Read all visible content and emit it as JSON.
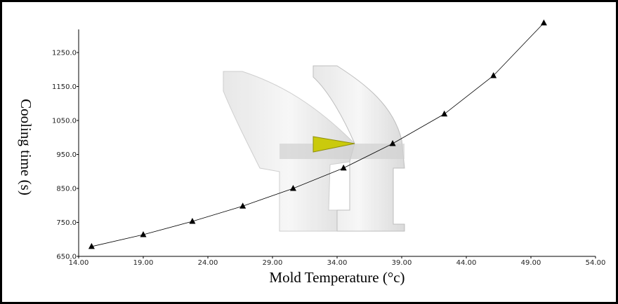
{
  "chart_data": {
    "type": "line",
    "xlabel": "Mold Temperature (°c)",
    "ylabel": "Cooling time (s)",
    "x": [
      15.0,
      19.0,
      22.8,
      26.7,
      30.6,
      34.5,
      38.3,
      42.3,
      46.1,
      50.0
    ],
    "series": [
      {
        "color": "#000000",
        "marker": "triangle",
        "values": [
          679,
          714,
          753,
          798,
          850,
          910,
          982,
          1069,
          1182,
          1337
        ]
      }
    ],
    "xlim": [
      14,
      54
    ],
    "xticks": [
      {
        "value": 14,
        "label": "14.00"
      },
      {
        "value": 19,
        "label": "19.00"
      },
      {
        "value": 24,
        "label": "24.00"
      },
      {
        "value": 29,
        "label": "29.00"
      },
      {
        "value": 34,
        "label": "34.00"
      },
      {
        "value": 39,
        "label": "39.00"
      },
      {
        "value": 44,
        "label": "44.00"
      },
      {
        "value": 49,
        "label": "49.00"
      },
      {
        "value": 54,
        "label": "54.00"
      }
    ],
    "ylim": [
      650,
      1318
    ],
    "yticks": [
      {
        "value": 650,
        "label": "650.0"
      },
      {
        "value": 750,
        "label": "750.0"
      },
      {
        "value": 850,
        "label": "850.0"
      },
      {
        "value": 950,
        "label": "950.0"
      },
      {
        "value": 1050,
        "label": "1050.0"
      },
      {
        "value": 1150,
        "label": "1150.0"
      },
      {
        "value": 1250,
        "label": "1250.0"
      }
    ]
  }
}
